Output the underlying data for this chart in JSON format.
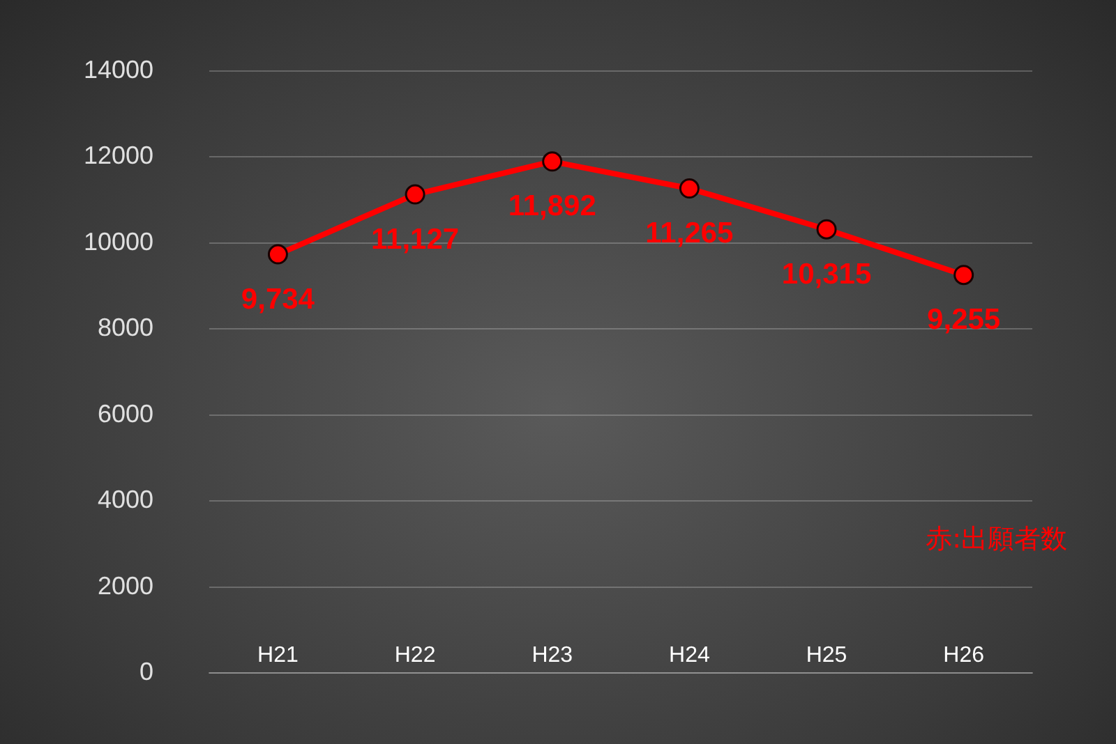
{
  "chart_data": {
    "type": "line",
    "categories": [
      "H21",
      "H22",
      "H23",
      "H24",
      "H25",
      "H26"
    ],
    "series": [
      {
        "color": "#ff0000",
        "values": [
          9734,
          11127,
          11892,
          11265,
          10315,
          9255
        ],
        "value_labels": [
          "9,734",
          "11,127",
          "11,892",
          "11,265",
          "10,315",
          "9,255"
        ]
      }
    ],
    "ylim": [
      0,
      14000
    ],
    "yticks": [
      0,
      2000,
      4000,
      6000,
      8000,
      10000,
      12000,
      14000
    ],
    "grid": "y",
    "legend": false,
    "marker": "circle",
    "line_style": "solid",
    "annotations": [
      "赤:出願者数"
    ]
  }
}
